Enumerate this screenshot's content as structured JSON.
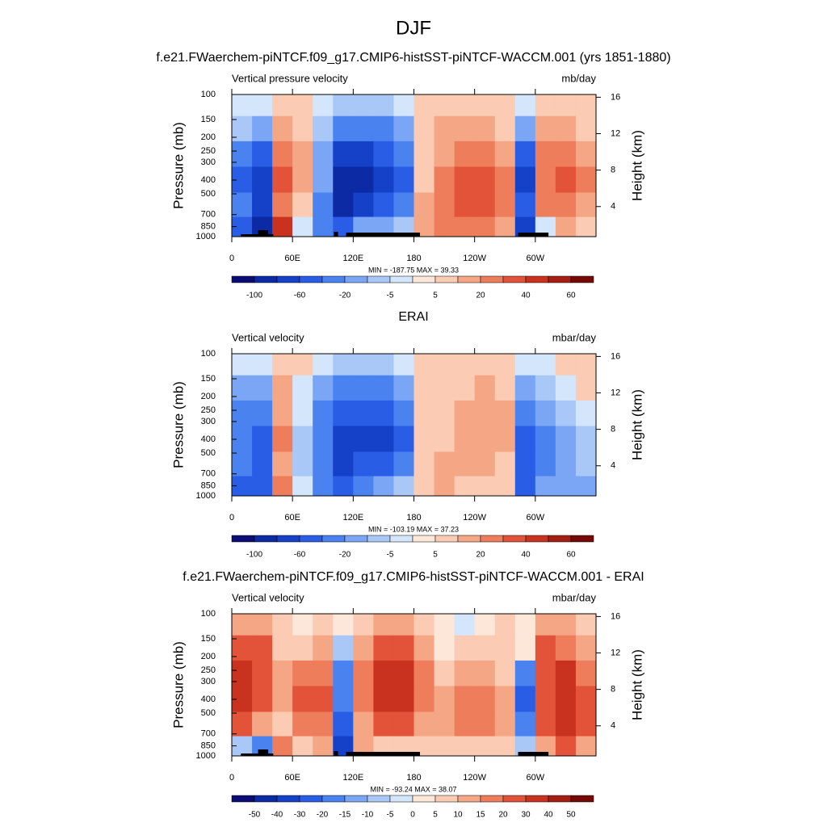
{
  "title": "DJF",
  "chart_data": [
    {
      "type": "contour",
      "title": "f.e21.FWaerchem-piNTCF.f09_g17.CMIP6-histSST-piNTCF-WACCM.001 (yrs 1851-1880)",
      "left_label": "Vertical pressure velocity",
      "right_label": "mb/day",
      "ylabel": "Pressure (mb)",
      "y2label": "Height (km)",
      "stats": "MIN = -187.75  MAX =  39.33",
      "xlim": [
        0,
        360
      ],
      "xticks": [
        0,
        {
          "value": 60,
          "label": "60E"
        },
        {
          "value": 120,
          "label": "120E"
        },
        180,
        {
          "value": 240,
          "label": "120W"
        },
        {
          "value": 300,
          "label": "60W"
        }
      ],
      "ylim": [
        1000,
        100
      ],
      "log_y": true,
      "yticks": [
        100,
        150,
        200,
        250,
        300,
        400,
        500,
        700,
        850,
        1000
      ],
      "y2lim": [
        0.7,
        16.3
      ],
      "y2ticks": [
        4,
        8,
        12,
        16
      ],
      "levels": [
        -100,
        -80,
        -60,
        -40,
        -20,
        -10,
        -5,
        0,
        5,
        10,
        20,
        30,
        40,
        50,
        60
      ],
      "colorbar_label_stride": 2,
      "colors": [
        "#0b0c74",
        "#0c2aa4",
        "#1540c8",
        "#2a5de6",
        "#4a82f0",
        "#7aa6f5",
        "#a9c8f7",
        "#d4e6fb",
        "#fde7d8",
        "#fbcbb3",
        "#f5a685",
        "#ee7d5c",
        "#e2533a",
        "#c9321f",
        "#a51e12",
        "#750a05"
      ],
      "topography": true,
      "x": [
        10,
        30,
        50,
        70,
        90,
        110,
        130,
        150,
        170,
        190,
        210,
        230,
        250,
        270,
        290,
        310,
        330,
        350
      ],
      "y": [
        115,
        175,
        260,
        400,
        600,
        880
      ],
      "z": [
        [
          -5,
          -5,
          5,
          5,
          -5,
          -10,
          -10,
          -10,
          -5,
          5,
          5,
          5,
          5,
          5,
          -5,
          5,
          5,
          5
        ],
        [
          -10,
          -20,
          10,
          5,
          -10,
          -40,
          -40,
          -40,
          -20,
          5,
          10,
          10,
          10,
          5,
          -20,
          10,
          10,
          5
        ],
        [
          -40,
          -60,
          20,
          10,
          -20,
          -80,
          -80,
          -60,
          -40,
          5,
          10,
          20,
          20,
          10,
          -60,
          20,
          20,
          10
        ],
        [
          -60,
          -80,
          30,
          10,
          -20,
          -100,
          -100,
          -80,
          -60,
          5,
          20,
          30,
          30,
          20,
          -80,
          20,
          30,
          20
        ],
        [
          -40,
          -80,
          20,
          5,
          -40,
          -100,
          -80,
          -60,
          -40,
          10,
          20,
          30,
          30,
          20,
          -60,
          20,
          20,
          10
        ],
        [
          -60,
          -100,
          40,
          -5,
          -40,
          -60,
          -20,
          -20,
          -10,
          10,
          20,
          20,
          20,
          10,
          -80,
          -5,
          10,
          5
        ]
      ]
    },
    {
      "type": "contour",
      "title": "ERAI",
      "left_label": "Vertical velocity",
      "right_label": "mbar/day",
      "ylabel": "Pressure (mb)",
      "y2label": "Height (km)",
      "stats": "MIN = -103.19  MAX =  37.23",
      "xlim": [
        0,
        360
      ],
      "xticks": [
        0,
        {
          "value": 60,
          "label": "60E"
        },
        {
          "value": 120,
          "label": "120E"
        },
        180,
        {
          "value": 240,
          "label": "120W"
        },
        {
          "value": 300,
          "label": "60W"
        }
      ],
      "ylim": [
        1000,
        100
      ],
      "log_y": true,
      "yticks": [
        100,
        150,
        200,
        250,
        300,
        400,
        500,
        700,
        850,
        1000
      ],
      "y2lim": [
        0.7,
        16.3
      ],
      "y2ticks": [
        4,
        8,
        12,
        16
      ],
      "levels": [
        -100,
        -80,
        -60,
        -40,
        -20,
        -10,
        -5,
        0,
        5,
        10,
        20,
        30,
        40,
        50,
        60
      ],
      "colorbar_label_stride": 2,
      "colors": [
        "#0b0c74",
        "#0c2aa4",
        "#1540c8",
        "#2a5de6",
        "#4a82f0",
        "#7aa6f5",
        "#a9c8f7",
        "#d4e6fb",
        "#fde7d8",
        "#fbcbb3",
        "#f5a685",
        "#ee7d5c",
        "#e2533a",
        "#c9321f",
        "#a51e12",
        "#750a05"
      ],
      "topography": false,
      "x": [
        10,
        30,
        50,
        70,
        90,
        110,
        130,
        150,
        170,
        190,
        210,
        230,
        250,
        270,
        290,
        310,
        330,
        350
      ],
      "y": [
        115,
        175,
        260,
        400,
        600,
        880
      ],
      "z": [
        [
          -5,
          -5,
          5,
          5,
          -5,
          -10,
          -10,
          -10,
          -5,
          5,
          5,
          5,
          5,
          5,
          -5,
          -5,
          5,
          5
        ],
        [
          -20,
          -20,
          10,
          -5,
          -20,
          -40,
          -40,
          -40,
          -20,
          5,
          5,
          5,
          10,
          5,
          -20,
          -10,
          -5,
          5
        ],
        [
          -40,
          -40,
          10,
          -5,
          -40,
          -60,
          -60,
          -60,
          -40,
          5,
          5,
          10,
          10,
          10,
          -40,
          -20,
          -10,
          -5
        ],
        [
          -40,
          -60,
          20,
          -10,
          -40,
          -80,
          -80,
          -80,
          -60,
          5,
          5,
          10,
          10,
          10,
          -60,
          -40,
          -20,
          -10
        ],
        [
          -40,
          -60,
          10,
          -10,
          -40,
          -80,
          -60,
          -60,
          -40,
          5,
          10,
          10,
          10,
          5,
          -60,
          -40,
          -20,
          -10
        ],
        [
          -60,
          -60,
          20,
          -5,
          -40,
          -60,
          -40,
          -20,
          -10,
          5,
          10,
          5,
          5,
          5,
          -60,
          -20,
          -20,
          -20
        ]
      ]
    },
    {
      "type": "contour",
      "title": "f.e21.FWaerchem-piNTCF.f09_g17.CMIP6-histSST-piNTCF-WACCM.001 - ERAI",
      "left_label": "Vertical velocity",
      "right_label": "mbar/day",
      "ylabel": "Pressure (mb)",
      "y2label": "Height (km)",
      "stats": "MIN = -93.24  MAX =  38.07",
      "xlim": [
        0,
        360
      ],
      "xticks": [
        0,
        {
          "value": 60,
          "label": "60E"
        },
        {
          "value": 120,
          "label": "120E"
        },
        180,
        {
          "value": 240,
          "label": "120W"
        },
        {
          "value": 300,
          "label": "60W"
        }
      ],
      "ylim": [
        1000,
        100
      ],
      "log_y": true,
      "yticks": [
        100,
        150,
        200,
        250,
        300,
        400,
        500,
        700,
        850,
        1000
      ],
      "y2lim": [
        0.7,
        16.3
      ],
      "y2ticks": [
        4,
        8,
        12,
        16
      ],
      "levels": [
        -50,
        -40,
        -30,
        -20,
        -15,
        -10,
        -5,
        0,
        5,
        10,
        15,
        20,
        30,
        40,
        50
      ],
      "colorbar_label_stride": 1,
      "colors": [
        "#0b0c74",
        "#0c2aa4",
        "#1540c8",
        "#2a5de6",
        "#4a82f0",
        "#7aa6f5",
        "#a9c8f7",
        "#d4e6fb",
        "#fde7d8",
        "#fbcbb3",
        "#f5a685",
        "#ee7d5c",
        "#e2533a",
        "#c9321f",
        "#a51e12",
        "#750a05"
      ],
      "topography": true,
      "x": [
        10,
        30,
        50,
        70,
        90,
        110,
        130,
        150,
        170,
        190,
        210,
        230,
        250,
        270,
        290,
        310,
        330,
        350
      ],
      "y": [
        115,
        175,
        260,
        400,
        600,
        880
      ],
      "z": [
        [
          10,
          10,
          5,
          0,
          5,
          0,
          5,
          10,
          10,
          5,
          0,
          -5,
          0,
          5,
          0,
          10,
          10,
          5
        ],
        [
          20,
          20,
          5,
          5,
          10,
          -10,
          10,
          20,
          20,
          10,
          0,
          5,
          5,
          5,
          0,
          20,
          15,
          10
        ],
        [
          30,
          20,
          10,
          15,
          15,
          -20,
          15,
          30,
          30,
          15,
          5,
          10,
          10,
          5,
          -20,
          20,
          30,
          15
        ],
        [
          30,
          20,
          10,
          20,
          20,
          -20,
          15,
          30,
          30,
          15,
          10,
          15,
          15,
          10,
          -30,
          20,
          30,
          20
        ],
        [
          20,
          10,
          5,
          15,
          15,
          -30,
          10,
          20,
          20,
          10,
          10,
          15,
          15,
          10,
          -20,
          20,
          30,
          20
        ],
        [
          -10,
          -20,
          15,
          5,
          10,
          -40,
          10,
          5,
          5,
          5,
          5,
          5,
          5,
          5,
          -10,
          10,
          20,
          10
        ]
      ]
    }
  ]
}
